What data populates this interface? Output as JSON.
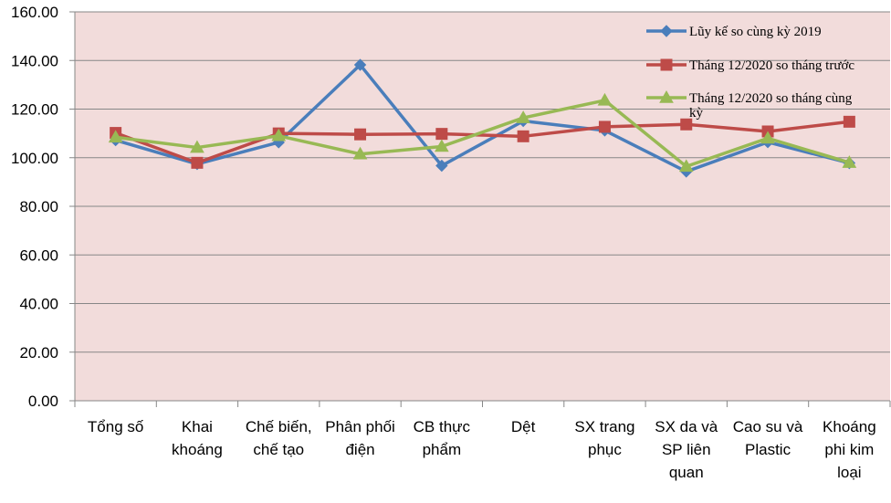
{
  "chart_data": {
    "type": "line",
    "title": "",
    "xlabel": "",
    "ylabel": "",
    "ylim": [
      0,
      160
    ],
    "yticks": [
      "0.00",
      "20.00",
      "40.00",
      "60.00",
      "80.00",
      "100.00",
      "120.00",
      "140.00",
      "160.00"
    ],
    "grid": true,
    "legend_position": "top-right",
    "categories": [
      [
        "Tổng số"
      ],
      [
        "Khai",
        "khoáng"
      ],
      [
        "Chế biến,",
        "chế tạo"
      ],
      [
        "Phân phối",
        "điện"
      ],
      [
        "CB thực",
        "phẩm"
      ],
      [
        "Dệt"
      ],
      [
        "SX trang",
        "phục"
      ],
      [
        "SX da và",
        "SP liên",
        "quan"
      ],
      [
        "Cao su và",
        "Plastic"
      ],
      [
        "Khoáng",
        "phi kim",
        "loại"
      ]
    ],
    "series": [
      {
        "name": "Lũy kế so cùng kỳ 2019",
        "color": "#4a7ebb",
        "marker": "diamond",
        "values": [
          107.2,
          97.4,
          106.3,
          138.2,
          96.7,
          115.1,
          111.2,
          94.3,
          106.4,
          97.8
        ]
      },
      {
        "name": "Tháng 12/2020 so tháng trước",
        "color": "#be4b48",
        "marker": "square",
        "values": [
          110.2,
          97.9,
          110.0,
          109.6,
          109.8,
          108.8,
          112.7,
          113.7,
          110.8,
          114.8
        ]
      },
      {
        "name": [
          "Tháng 12/2020 so tháng cùng",
          "kỳ"
        ],
        "color": "#98b954",
        "marker": "triangle",
        "values": [
          108.4,
          104.2,
          109.0,
          101.5,
          104.6,
          116.4,
          123.6,
          96.4,
          108.0,
          98.0
        ]
      }
    ]
  }
}
